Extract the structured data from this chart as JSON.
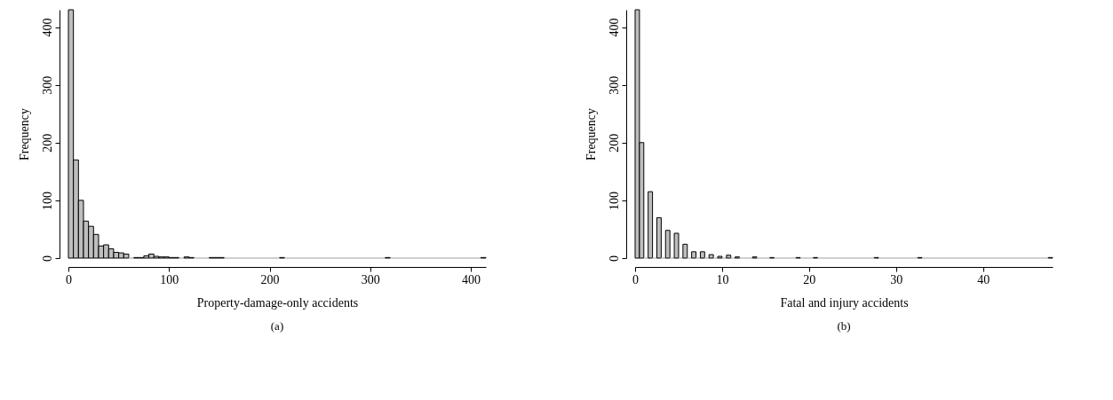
{
  "chart_data": [
    {
      "type": "histogram",
      "xlabel": "Property-damage-only accidents",
      "ylabel": "Frequency",
      "annotations": [
        "(a)"
      ],
      "color": "#bebebe",
      "grid": false,
      "bins": [
        0,
        5,
        10,
        15,
        20,
        25,
        30,
        35,
        40,
        45,
        50,
        55,
        60,
        65,
        70,
        75,
        80,
        85,
        90,
        95,
        100,
        105,
        110,
        115,
        120,
        125,
        130,
        135,
        140,
        145,
        150,
        155,
        160,
        165,
        170,
        175,
        180,
        185,
        190,
        195,
        200,
        205,
        210,
        215,
        220,
        225,
        230,
        235,
        240,
        245,
        250,
        255,
        260,
        265,
        270,
        275,
        280,
        285,
        290,
        295,
        300,
        305,
        310,
        315,
        320,
        325,
        330,
        335,
        340,
        345,
        350,
        355,
        360,
        365,
        370,
        375,
        380,
        385,
        390,
        395,
        400,
        405,
        410,
        415
      ],
      "values": [
        430,
        170,
        100,
        64,
        55,
        41,
        21,
        23,
        16,
        10,
        9,
        7,
        0,
        1,
        1,
        4,
        7,
        3,
        2,
        2,
        1,
        1,
        0,
        2,
        1,
        0,
        0,
        0,
        1,
        1,
        1,
        0,
        0,
        0,
        0,
        0,
        0,
        0,
        0,
        0,
        0,
        0,
        1,
        0,
        0,
        0,
        0,
        0,
        0,
        0,
        0,
        0,
        0,
        0,
        0,
        0,
        0,
        0,
        0,
        0,
        0,
        0,
        0,
        1,
        0,
        0,
        0,
        0,
        0,
        0,
        0,
        0,
        0,
        0,
        0,
        0,
        0,
        0,
        0,
        0,
        0,
        0,
        1
      ],
      "xlim": [
        0,
        415
      ],
      "xticks": [
        0,
        100,
        200,
        300,
        400
      ],
      "ylim": [
        0,
        430
      ],
      "yticks": [
        0,
        100,
        200,
        300,
        400
      ]
    },
    {
      "type": "histogram",
      "xlabel": "Fatal and injury accidents",
      "ylabel": "Frequency",
      "annotations": [
        "(b)"
      ],
      "color": "#bebebe",
      "grid": false,
      "bins": [
        0,
        0.5,
        1,
        1.5,
        2,
        2.5,
        3,
        3.5,
        4,
        4.5,
        5,
        5.5,
        6,
        6.5,
        7,
        7.5,
        8,
        8.5,
        9,
        9.5,
        10,
        10.5,
        11,
        11.5,
        12,
        12.5,
        13,
        13.5,
        14,
        14.5,
        15,
        15.5,
        16,
        16.5,
        17,
        17.5,
        18,
        18.5,
        19,
        19.5,
        20,
        20.5,
        21,
        21.5,
        22,
        22.5,
        23,
        23.5,
        24,
        24.5,
        25,
        25.5,
        26,
        26.5,
        27,
        27.5,
        28,
        28.5,
        29,
        29.5,
        30,
        30.5,
        31,
        31.5,
        32,
        32.5,
        33,
        33.5,
        34,
        34.5,
        35,
        35.5,
        36,
        36.5,
        37,
        37.5,
        38,
        38.5,
        39,
        39.5,
        40,
        40.5,
        41,
        41.5,
        42,
        42.5,
        43,
        43.5,
        44,
        44.5,
        45,
        45.5,
        46,
        46.5,
        47,
        47.5,
        48
      ],
      "values": [
        430,
        200,
        0,
        115,
        0,
        70,
        0,
        48,
        0,
        43,
        0,
        24,
        0,
        11,
        0,
        11,
        0,
        6,
        0,
        3,
        0,
        5,
        0,
        2,
        0,
        0,
        0,
        2,
        0,
        0,
        0,
        1,
        0,
        0,
        0,
        0,
        0,
        1,
        0,
        0,
        0,
        1,
        0,
        0,
        0,
        0,
        0,
        0,
        0,
        0,
        0,
        0,
        0,
        0,
        0,
        1,
        0,
        0,
        0,
        0,
        0,
        0,
        0,
        0,
        0,
        1,
        0,
        0,
        0,
        0,
        0,
        0,
        0,
        0,
        0,
        0,
        0,
        0,
        0,
        0,
        0,
        0,
        0,
        0,
        0,
        0,
        0,
        0,
        0,
        0,
        0,
        0,
        0,
        0,
        0,
        1
      ],
      "xlim": [
        0,
        48
      ],
      "xticks": [
        0,
        10,
        20,
        30,
        40
      ],
      "ylim": [
        0,
        430
      ],
      "yticks": [
        0,
        100,
        200,
        300,
        400
      ]
    }
  ]
}
